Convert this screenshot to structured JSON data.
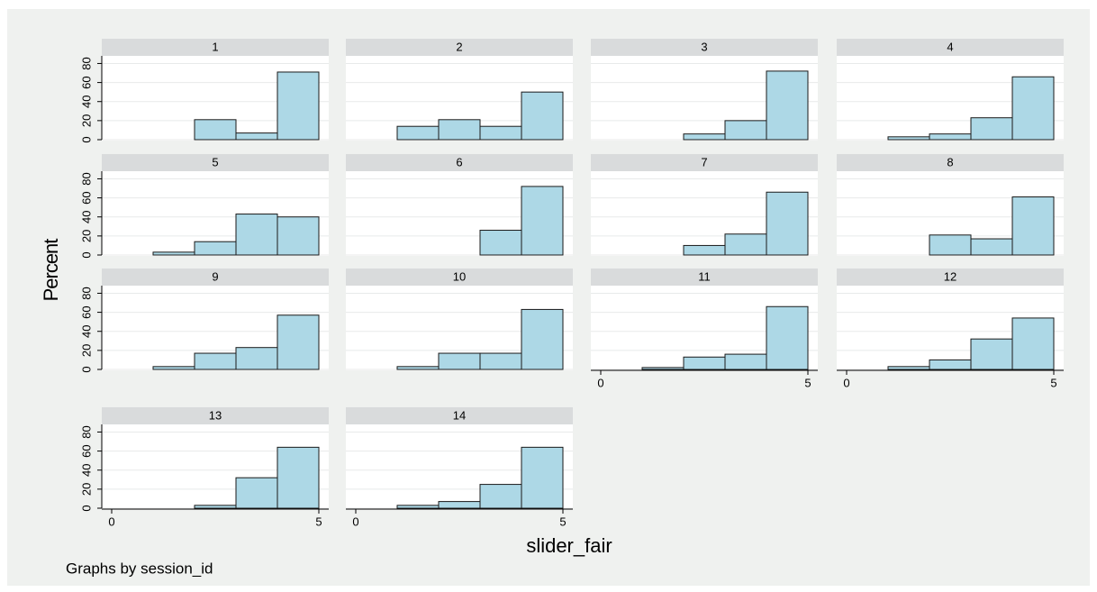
{
  "y_label": "Percent",
  "x_label": "slider_fair",
  "note": "Graphs by session_id",
  "chart_data": [
    {
      "type": "histogram",
      "title": "1",
      "bins": [
        0,
        1,
        2,
        3,
        4,
        5
      ],
      "values": [
        0,
        0,
        21,
        7,
        71
      ],
      "color": "#add8e6",
      "xlim": [
        0,
        5
      ],
      "ylim": [
        0,
        88
      ],
      "yticks": [
        0,
        20,
        40,
        60,
        80
      ]
    },
    {
      "type": "histogram",
      "title": "2",
      "bins": [
        0,
        1,
        2,
        3,
        4,
        5
      ],
      "values": [
        0,
        14,
        21,
        14,
        50
      ],
      "color": "#add8e6",
      "xlim": [
        0,
        5
      ],
      "ylim": [
        0,
        88
      ],
      "yticks": [
        0,
        20,
        40,
        60,
        80
      ]
    },
    {
      "type": "histogram",
      "title": "3",
      "bins": [
        0,
        1,
        2,
        3,
        4,
        5
      ],
      "values": [
        0,
        0,
        6,
        20,
        72
      ],
      "color": "#add8e6",
      "xlim": [
        0,
        5
      ],
      "ylim": [
        0,
        88
      ],
      "yticks": [
        0,
        20,
        40,
        60,
        80
      ]
    },
    {
      "type": "histogram",
      "title": "4",
      "bins": [
        0,
        1,
        2,
        3,
        4,
        5
      ],
      "values": [
        0,
        3,
        6,
        23,
        66
      ],
      "color": "#add8e6",
      "xlim": [
        0,
        5
      ],
      "ylim": [
        0,
        88
      ],
      "yticks": [
        0,
        20,
        40,
        60,
        80
      ]
    },
    {
      "type": "histogram",
      "title": "5",
      "bins": [
        0,
        1,
        2,
        3,
        4,
        5
      ],
      "values": [
        0,
        3,
        14,
        43,
        40
      ],
      "color": "#add8e6",
      "xlim": [
        0,
        5
      ],
      "ylim": [
        0,
        88
      ],
      "yticks": [
        0,
        20,
        40,
        60,
        80
      ]
    },
    {
      "type": "histogram",
      "title": "6",
      "bins": [
        0,
        1,
        2,
        3,
        4,
        5
      ],
      "values": [
        0,
        0,
        0,
        26,
        72
      ],
      "color": "#add8e6",
      "xlim": [
        0,
        5
      ],
      "ylim": [
        0,
        88
      ],
      "yticks": [
        0,
        20,
        40,
        60,
        80
      ]
    },
    {
      "type": "histogram",
      "title": "7",
      "bins": [
        0,
        1,
        2,
        3,
        4,
        5
      ],
      "values": [
        0,
        0,
        10,
        22,
        66
      ],
      "color": "#add8e6",
      "xlim": [
        0,
        5
      ],
      "ylim": [
        0,
        88
      ],
      "yticks": [
        0,
        20,
        40,
        60,
        80
      ]
    },
    {
      "type": "histogram",
      "title": "8",
      "bins": [
        0,
        1,
        2,
        3,
        4,
        5
      ],
      "values": [
        0,
        0,
        21,
        17,
        61
      ],
      "color": "#add8e6",
      "xlim": [
        0,
        5
      ],
      "ylim": [
        0,
        88
      ],
      "yticks": [
        0,
        20,
        40,
        60,
        80
      ]
    },
    {
      "type": "histogram",
      "title": "9",
      "bins": [
        0,
        1,
        2,
        3,
        4,
        5
      ],
      "values": [
        0,
        3,
        17,
        23,
        57
      ],
      "color": "#add8e6",
      "xlim": [
        0,
        5
      ],
      "ylim": [
        0,
        88
      ],
      "yticks": [
        0,
        20,
        40,
        60,
        80
      ]
    },
    {
      "type": "histogram",
      "title": "10",
      "bins": [
        0,
        1,
        2,
        3,
        4,
        5
      ],
      "values": [
        0,
        3,
        17,
        17,
        63
      ],
      "color": "#add8e6",
      "xlim": [
        0,
        5
      ],
      "ylim": [
        0,
        88
      ],
      "yticks": [
        0,
        20,
        40,
        60,
        80
      ]
    },
    {
      "type": "histogram",
      "title": "11",
      "bins": [
        0,
        1,
        2,
        3,
        4,
        5
      ],
      "values": [
        0,
        2,
        13,
        16,
        66
      ],
      "color": "#add8e6",
      "xlim": [
        0,
        5
      ],
      "ylim": [
        0,
        88
      ],
      "yticks": [
        0,
        20,
        40,
        60,
        80
      ],
      "xticks": [
        0,
        5
      ]
    },
    {
      "type": "histogram",
      "title": "12",
      "bins": [
        0,
        1,
        2,
        3,
        4,
        5
      ],
      "values": [
        0,
        3,
        10,
        32,
        54
      ],
      "color": "#add8e6",
      "xlim": [
        0,
        5
      ],
      "ylim": [
        0,
        88
      ],
      "yticks": [
        0,
        20,
        40,
        60,
        80
      ],
      "xticks": [
        0,
        5
      ]
    },
    {
      "type": "histogram",
      "title": "13",
      "bins": [
        0,
        1,
        2,
        3,
        4,
        5
      ],
      "values": [
        0,
        0,
        3,
        32,
        64
      ],
      "color": "#add8e6",
      "xlim": [
        0,
        5
      ],
      "ylim": [
        0,
        88
      ],
      "yticks": [
        0,
        20,
        40,
        60,
        80
      ],
      "xticks": [
        0,
        5
      ]
    },
    {
      "type": "histogram",
      "title": "14",
      "bins": [
        0,
        1,
        2,
        3,
        4,
        5
      ],
      "values": [
        0,
        3,
        7,
        25,
        64
      ],
      "color": "#add8e6",
      "xlim": [
        0,
        5
      ],
      "ylim": [
        0,
        88
      ],
      "yticks": [
        0,
        20,
        40,
        60,
        80
      ],
      "xticks": [
        0,
        5
      ]
    }
  ]
}
